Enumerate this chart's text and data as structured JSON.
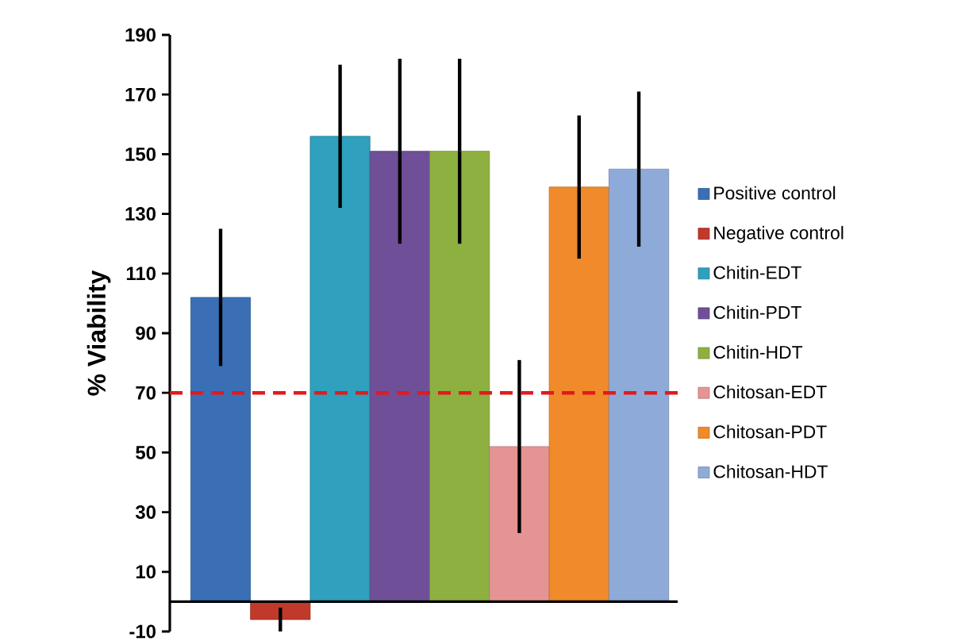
{
  "chart_data": {
    "type": "bar",
    "ylabel": "% Viability",
    "categories": [
      null,
      null,
      null,
      null,
      null,
      null,
      null,
      null
    ],
    "series": [
      {
        "name": "Positive control",
        "color": "#3a6fb5",
        "values": [
          102,
          null,
          null,
          null,
          null,
          null,
          null,
          null
        ],
        "errors": [
          23,
          null,
          null,
          null,
          null,
          null,
          null,
          null
        ]
      },
      {
        "name": "Negative control",
        "color": "#c0392b",
        "values": [
          null,
          -6,
          null,
          null,
          null,
          null,
          null,
          null
        ],
        "errors": [
          null,
          4,
          null,
          null,
          null,
          null,
          null,
          null
        ]
      },
      {
        "name": "Chitin-EDT",
        "color": "#2fa0bd",
        "values": [
          null,
          null,
          156,
          null,
          null,
          null,
          null,
          null
        ],
        "errors": [
          null,
          null,
          24,
          null,
          null,
          null,
          null,
          null
        ]
      },
      {
        "name": "Chitin-PDT",
        "color": "#6f4f98",
        "values": [
          null,
          null,
          null,
          151,
          null,
          null,
          null,
          null
        ],
        "errors": [
          null,
          null,
          null,
          31,
          null,
          null,
          null,
          null
        ]
      },
      {
        "name": "Chitin-HDT",
        "color": "#8db040",
        "values": [
          null,
          null,
          null,
          null,
          151,
          null,
          null,
          null
        ],
        "errors": [
          null,
          null,
          null,
          null,
          31,
          null,
          null,
          null
        ]
      },
      {
        "name": "Chitosan-EDT",
        "color": "#e59494",
        "values": [
          null,
          null,
          null,
          null,
          null,
          52,
          null,
          null
        ],
        "errors": [
          null,
          null,
          null,
          null,
          null,
          29,
          null,
          null
        ]
      },
      {
        "name": "Chitosan-PDT",
        "color": "#f08a2a",
        "values": [
          null,
          null,
          null,
          null,
          null,
          null,
          139,
          null
        ],
        "errors": [
          null,
          null,
          null,
          null,
          null,
          null,
          24,
          null
        ]
      },
      {
        "name": "Chitosan-HDT",
        "color": "#8eaad9",
        "values": [
          null,
          null,
          null,
          null,
          null,
          null,
          null,
          145
        ],
        "errors": [
          null,
          null,
          null,
          null,
          null,
          null,
          null,
          26
        ]
      }
    ],
    "ylim": [
      -10,
      190
    ],
    "yticks": [
      -10,
      10,
      30,
      50,
      70,
      90,
      110,
      130,
      150,
      170,
      190
    ],
    "ref_lines": [
      {
        "axis": "y",
        "value": 70,
        "color": "#e31a1c",
        "line_style": "dashed"
      }
    ],
    "grid": false,
    "legend": "right",
    "tick_labels": "y"
  }
}
